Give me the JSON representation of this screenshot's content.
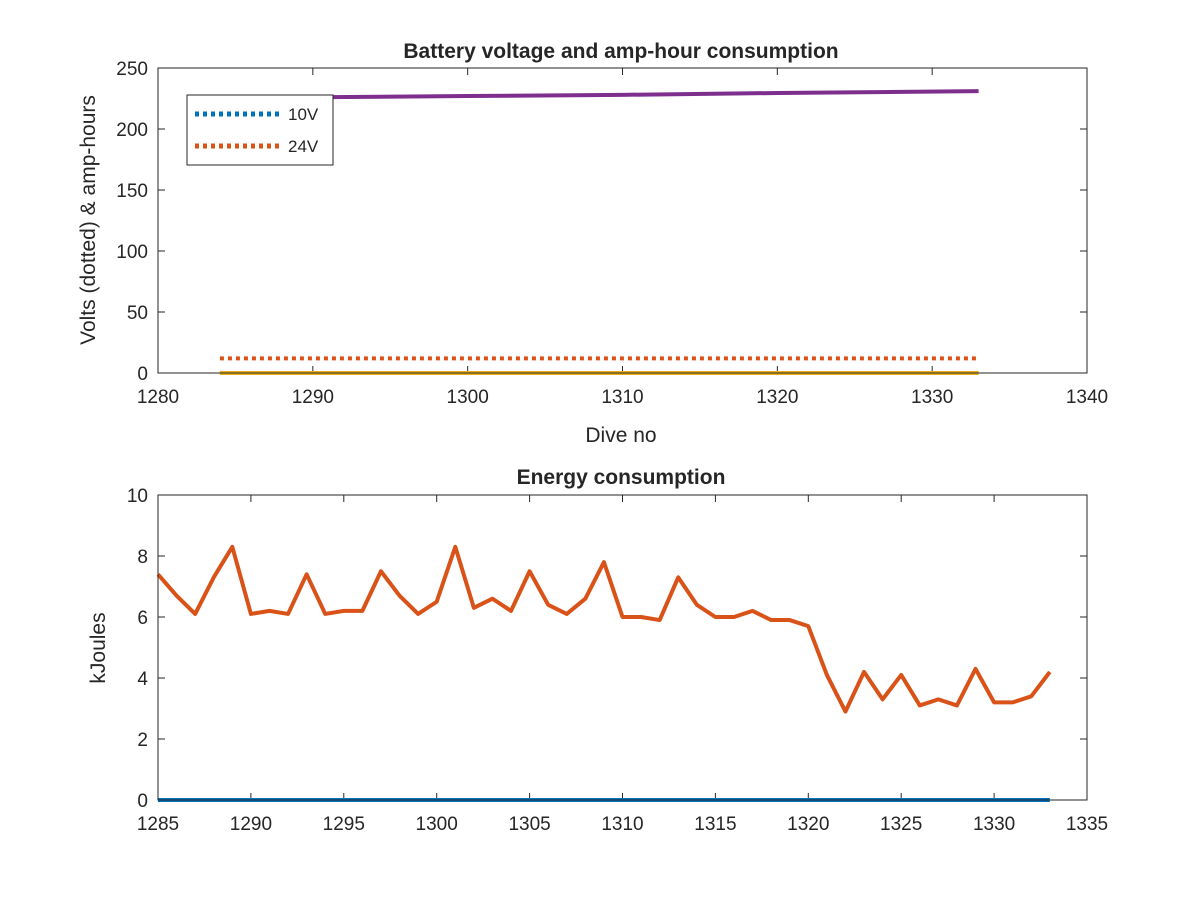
{
  "chart_data": [
    {
      "type": "line",
      "title": "Battery voltage and amp-hour consumption",
      "xlabel": "Dive no",
      "ylabel": "Volts (dotted) & amp-hours",
      "xlim": [
        1280,
        1340
      ],
      "ylim": [
        0,
        250
      ],
      "xticks": [
        "1280",
        "1290",
        "1300",
        "1310",
        "1320",
        "1330",
        "1340"
      ],
      "yticks": [
        "0",
        "50",
        "100",
        "150",
        "200",
        "250"
      ],
      "legend_position": "top-left",
      "series": [
        {
          "name": "10V",
          "style": "dotted",
          "color": "#0072BD",
          "x": [
            1284,
            1333
          ],
          "y": [
            0,
            0
          ]
        },
        {
          "name": "24V",
          "style": "dotted",
          "color": "#D95319",
          "x": [
            1284,
            1333
          ],
          "y": [
            12,
            12
          ]
        },
        {
          "style": "solid",
          "color": "#EDB120",
          "x": [
            1284,
            1333
          ],
          "y": [
            0,
            0
          ]
        },
        {
          "style": "solid",
          "color": "#7E2F8E",
          "x": [
            1284,
            1290,
            1300,
            1310,
            1320,
            1333
          ],
          "y": [
            225,
            226,
            227,
            228,
            229.5,
            231
          ]
        }
      ]
    },
    {
      "type": "line",
      "title": "Energy consumption",
      "xlabel": "",
      "ylabel": "kJoules",
      "xlim": [
        1285,
        1335
      ],
      "ylim": [
        0,
        10
      ],
      "xticks": [
        "1285",
        "1290",
        "1295",
        "1300",
        "1305",
        "1310",
        "1315",
        "1320",
        "1325",
        "1330",
        "1335"
      ],
      "yticks": [
        "0",
        "2",
        "4",
        "6",
        "8",
        "10"
      ],
      "series": [
        {
          "style": "solid",
          "color": "#0072BD",
          "x": [
            1285,
            1333
          ],
          "y": [
            0,
            0
          ]
        },
        {
          "style": "solid",
          "color": "#D95319",
          "x": [
            1285,
            1286,
            1287,
            1288,
            1289,
            1290,
            1291,
            1292,
            1293,
            1294,
            1295,
            1296,
            1297,
            1298,
            1299,
            1300,
            1301,
            1302,
            1303,
            1304,
            1305,
            1306,
            1307,
            1308,
            1309,
            1310,
            1311,
            1312,
            1313,
            1314,
            1315,
            1316,
            1317,
            1318,
            1319,
            1320,
            1321,
            1322,
            1323,
            1324,
            1325,
            1326,
            1327,
            1328,
            1329,
            1330,
            1331,
            1332,
            1333
          ],
          "y": [
            7.4,
            6.7,
            6.1,
            7.3,
            8.3,
            6.1,
            6.2,
            6.1,
            7.4,
            6.1,
            6.2,
            6.2,
            7.5,
            6.7,
            6.1,
            6.5,
            8.3,
            6.3,
            6.6,
            6.2,
            7.5,
            6.4,
            6.1,
            6.6,
            7.8,
            6.0,
            6.0,
            5.9,
            7.3,
            6.4,
            6.0,
            6.0,
            6.2,
            5.9,
            5.9,
            5.7,
            4.1,
            2.9,
            4.2,
            3.3,
            4.1,
            3.1,
            3.3,
            3.1,
            4.3,
            3.2,
            3.2,
            3.4,
            4.2
          ]
        }
      ]
    }
  ]
}
